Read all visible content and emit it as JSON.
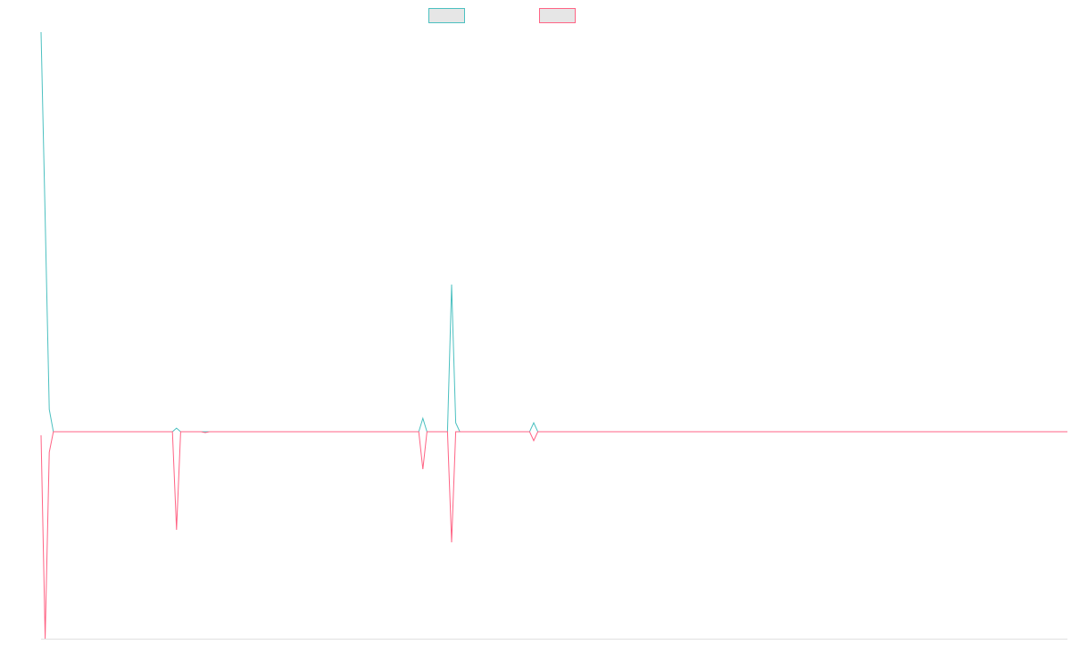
{
  "chart_data": {
    "type": "line",
    "series": [
      {
        "color": "#4bc0c0",
        "values": [
          448,
          240,
          25,
          0,
          0,
          0,
          0,
          0,
          0,
          0,
          0,
          0,
          0,
          0,
          0,
          0,
          0,
          0,
          0,
          0,
          0,
          0,
          0,
          0,
          0,
          0,
          0,
          0,
          0,
          0,
          0,
          0,
          0,
          4,
          0,
          0,
          0,
          0,
          0,
          0,
          0,
          0,
          0,
          0,
          0,
          0,
          0,
          0,
          0,
          0,
          0,
          0,
          0,
          0,
          0,
          0,
          0,
          0,
          0,
          0,
          0,
          0,
          0,
          0,
          0,
          0,
          0,
          0,
          0,
          0,
          0,
          0,
          0,
          0,
          0,
          0,
          0,
          0,
          0,
          0,
          0,
          0,
          0,
          0,
          0,
          0,
          0,
          0,
          0,
          0,
          0,
          0,
          0,
          15,
          0,
          0,
          0,
          0,
          0,
          0,
          165,
          10,
          0,
          0,
          0,
          0,
          0,
          0,
          0,
          0,
          0,
          0,
          0,
          0,
          0,
          0,
          0,
          0,
          0,
          0,
          10,
          0,
          0,
          0,
          0,
          0,
          0,
          0,
          0,
          0,
          0,
          0,
          0,
          0,
          0,
          0,
          0,
          0,
          0,
          0,
          0,
          0,
          0,
          0,
          0,
          0,
          0,
          0,
          0,
          0,
          0,
          0,
          0,
          0,
          0,
          0,
          0,
          0,
          0,
          0,
          0,
          0,
          0,
          0,
          0,
          0,
          0,
          0,
          0,
          0,
          0,
          0,
          0,
          0,
          0,
          0,
          0,
          0,
          0,
          0,
          0,
          0,
          0,
          0,
          0,
          0,
          0,
          0,
          0,
          0,
          0,
          0,
          0,
          0,
          0,
          0,
          0,
          0,
          0,
          0,
          0,
          0,
          0,
          0,
          0,
          0,
          0,
          0,
          0,
          0,
          0,
          0,
          0,
          0,
          0,
          0,
          0,
          0,
          0,
          0,
          0,
          0,
          0,
          0,
          0,
          0,
          0,
          0,
          0,
          0,
          0,
          0,
          0,
          0,
          0,
          0,
          0,
          0,
          0,
          0,
          0,
          0,
          0,
          0,
          0,
          0,
          0,
          0,
          0,
          0,
          0
        ]
      },
      {
        "color": "#ff6384",
        "values": [
          -4,
          -232,
          -23,
          0,
          0,
          0,
          0,
          0,
          0,
          0,
          0,
          0,
          0,
          0,
          0,
          0,
          0,
          0,
          0,
          0,
          0,
          0,
          0,
          0,
          0,
          0,
          0,
          0,
          0,
          0,
          0,
          0,
          0,
          -110,
          0,
          0,
          0,
          0,
          0,
          0,
          -1,
          0,
          0,
          0,
          0,
          0,
          0,
          0,
          0,
          0,
          0,
          0,
          0,
          0,
          0,
          0,
          0,
          0,
          0,
          0,
          0,
          0,
          0,
          0,
          0,
          0,
          0,
          0,
          0,
          0,
          0,
          0,
          0,
          0,
          0,
          0,
          0,
          0,
          0,
          0,
          0,
          0,
          0,
          0,
          0,
          0,
          0,
          0,
          0,
          0,
          0,
          0,
          0,
          -42,
          0,
          0,
          0,
          0,
          0,
          0,
          -124,
          0,
          0,
          0,
          0,
          0,
          0,
          0,
          0,
          0,
          0,
          0,
          0,
          0,
          0,
          0,
          0,
          0,
          0,
          0,
          -10,
          0,
          0,
          0,
          0,
          0,
          0,
          0,
          0,
          0,
          0,
          0,
          0,
          0,
          0,
          0,
          0,
          0,
          0,
          0,
          0,
          0,
          0,
          0,
          0,
          0,
          0,
          0,
          0,
          0,
          0,
          0,
          0,
          0,
          0,
          0,
          0,
          0,
          0,
          0,
          0,
          0,
          0,
          0,
          0,
          0,
          0,
          0,
          0,
          0,
          0,
          0,
          0,
          0,
          0,
          0,
          0,
          0,
          0,
          0,
          0,
          0,
          0,
          0,
          0,
          0,
          0,
          0,
          0,
          0,
          0,
          0,
          0,
          0,
          0,
          0,
          0,
          0,
          0,
          0,
          0,
          0,
          0,
          0,
          0,
          0,
          0,
          0,
          0,
          0,
          0,
          0,
          0,
          0,
          0,
          0,
          0,
          0,
          0,
          0,
          0,
          0,
          0,
          0,
          0,
          0,
          0,
          0,
          0,
          0,
          0,
          0,
          0,
          0,
          0,
          0,
          0,
          0,
          0,
          0,
          0,
          0,
          0,
          0,
          0,
          0,
          0,
          0,
          0,
          0,
          0
        ]
      }
    ],
    "ylim": [
      -232,
      448
    ]
  }
}
